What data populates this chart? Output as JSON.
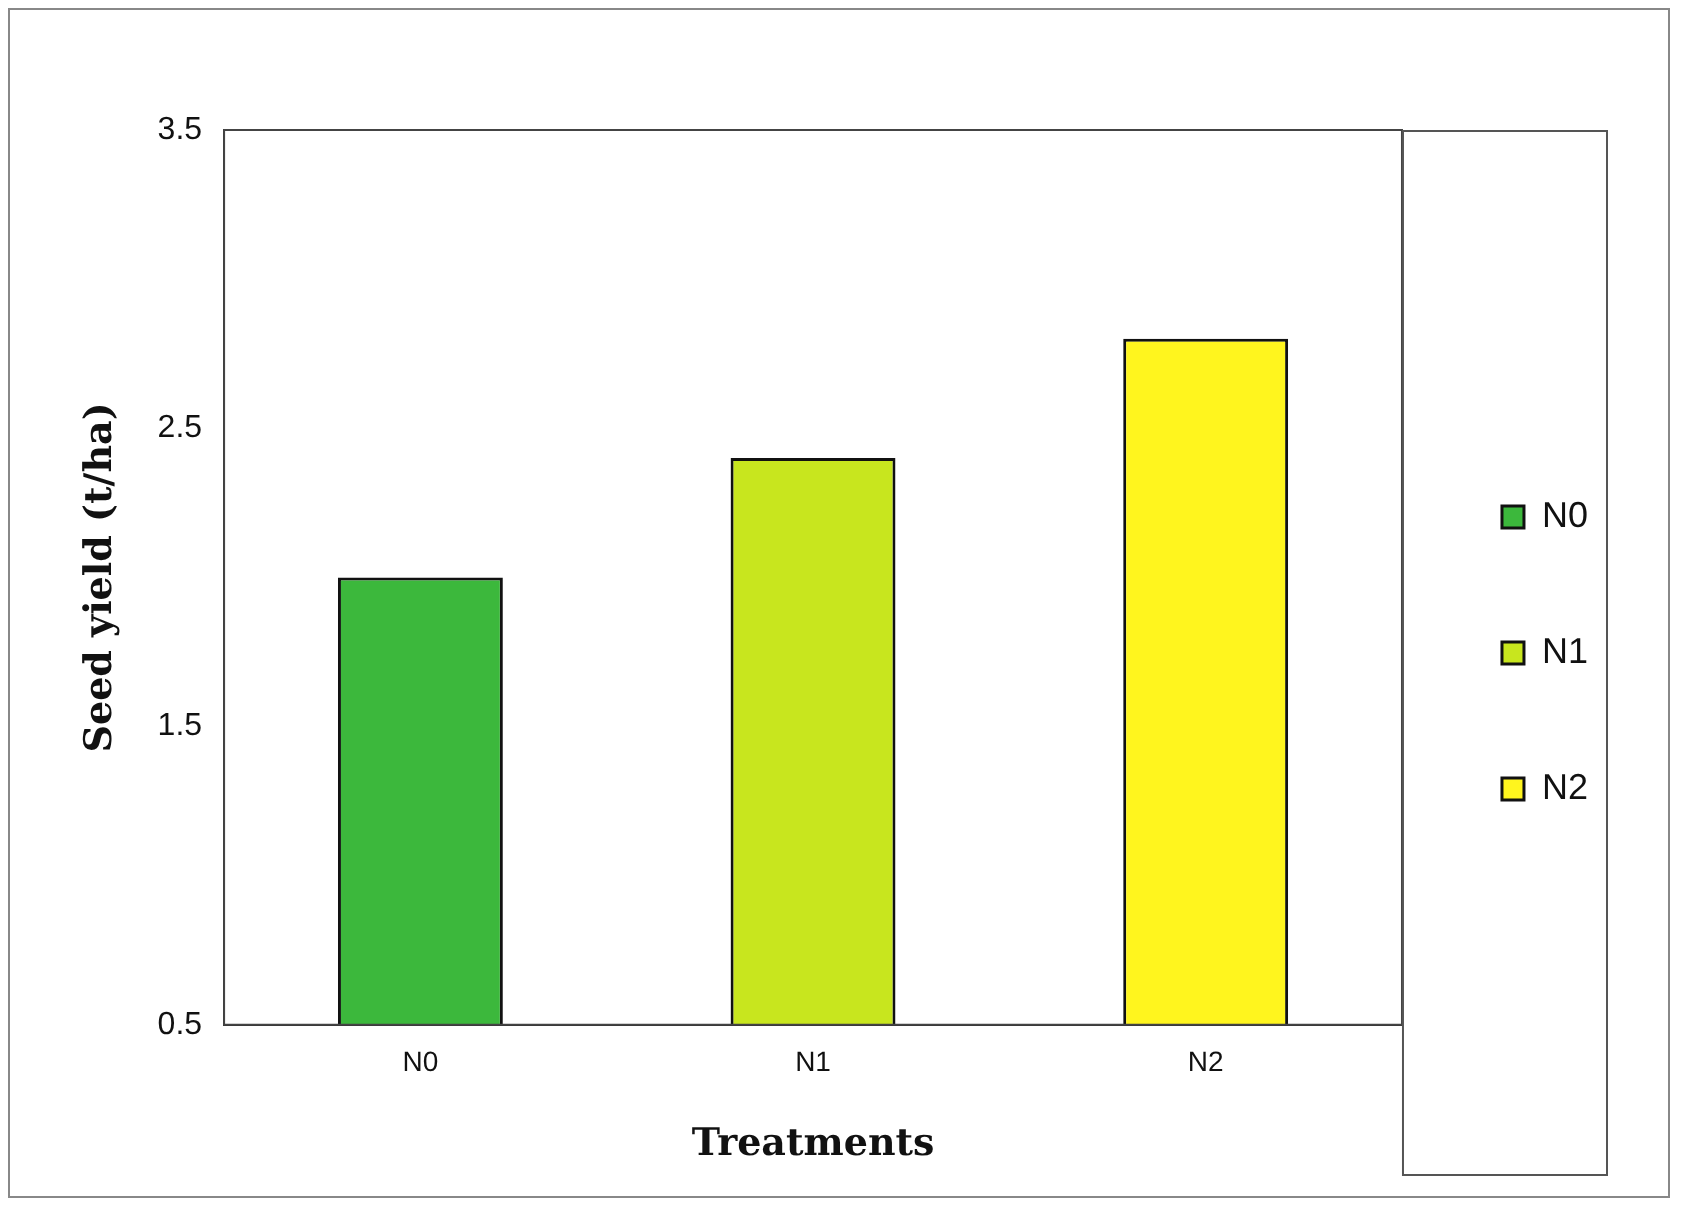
{
  "chart_data": {
    "type": "bar",
    "xlabel": "Treatments",
    "ylabel": "Seed yield (t/ha)",
    "categories": [
      "N0",
      "N1",
      "N2"
    ],
    "series": [
      {
        "name": "N0",
        "color": "#3cb83c",
        "values": [
          2.0,
          null,
          null
        ]
      },
      {
        "name": "N1",
        "color": "#c8e61e",
        "values": [
          null,
          2.4,
          null
        ]
      },
      {
        "name": "N2",
        "color": "#fff51e",
        "values": [
          null,
          null,
          2.8
        ]
      }
    ],
    "ylim": [
      0.5,
      3.5
    ],
    "yticks": [
      0.5,
      1.5,
      2.5,
      3.5
    ],
    "grid": false,
    "legend": "right"
  }
}
